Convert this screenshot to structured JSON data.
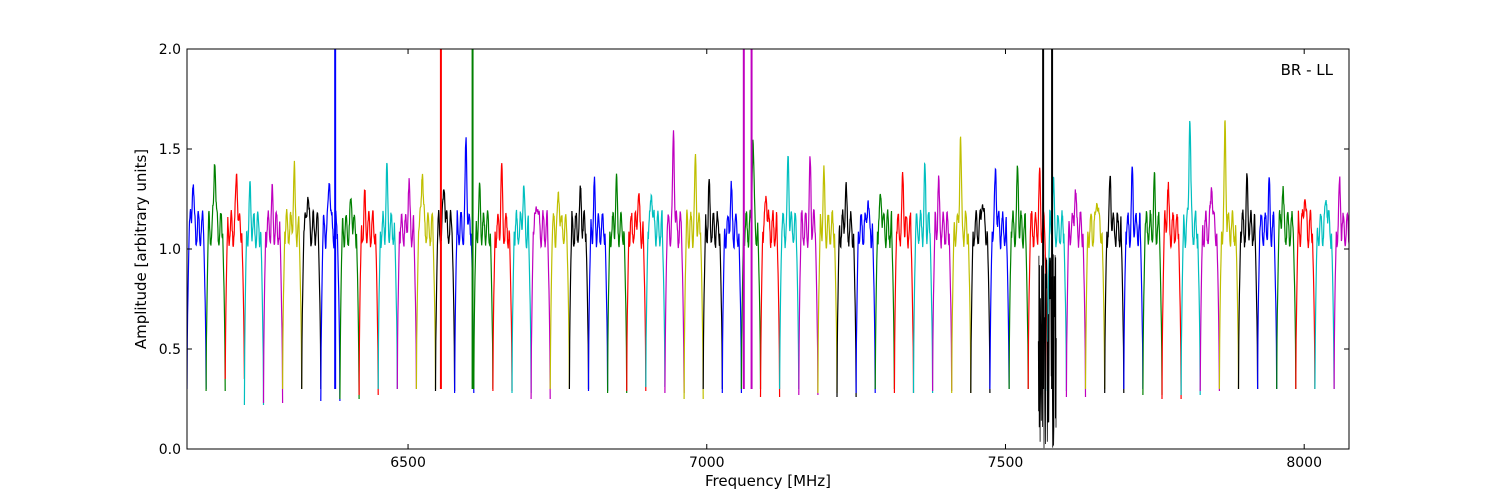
{
  "chart_data": {
    "type": "line",
    "annotation": "BR - LL",
    "xlabel": "Frequency [MHz]",
    "ylabel": "Amplitude [arbitrary units]",
    "xlim": [
      6130,
      8075
    ],
    "ylim": [
      0.0,
      2.0
    ],
    "xticks": [
      {
        "value": 6500,
        "label": "6500"
      },
      {
        "value": 7000,
        "label": "7000"
      },
      {
        "value": 7500,
        "label": "7500"
      },
      {
        "value": 8000,
        "label": "8000"
      }
    ],
    "yticks": [
      {
        "value": 0.0,
        "label": "0.0"
      },
      {
        "value": 0.5,
        "label": "0.5"
      },
      {
        "value": 1.0,
        "label": "1.0"
      },
      {
        "value": 1.5,
        "label": "1.5"
      },
      {
        "value": 2.0,
        "label": "2.0"
      }
    ],
    "grid": false,
    "colors": [
      "#0000ff",
      "#008000",
      "#ff0000",
      "#00bfbf",
      "#bf00bf",
      "#bfbf00",
      "#000000"
    ],
    "background_series_color": "#c0c0c0",
    "channel_width_mhz": 32,
    "channel_start_mhz": 6130,
    "channel_peaks": [
      1.36,
      1.52,
      1.41,
      1.28,
      1.25,
      1.38,
      1.31,
      1.4,
      1.26,
      1.22,
      1.37,
      1.31,
      1.45,
      1.35,
      1.55,
      1.27,
      1.38,
      1.32,
      1.29,
      1.3,
      1.28,
      1.27,
      1.32,
      1.29,
      1.33,
      1.6,
      1.43,
      1.28,
      1.3,
      1.58,
      1.31,
      1.45,
      1.4,
      1.34,
      1.31,
      1.27,
      1.3,
      1.34,
      1.36,
      1.3,
      1.58,
      1.29,
      1.4,
      1.37,
      1.33,
      1.32,
      1.31,
      1.3,
      1.34,
      1.35,
      1.3,
      1.3,
      1.71,
      1.37,
      1.62,
      1.3,
      1.3,
      1.3,
      1.3,
      1.3,
      1.3
    ],
    "channel_minima": [
      0.3,
      0.29,
      0.35,
      0.22,
      0.23,
      0.3,
      0.3,
      0.24,
      0.25,
      0.27,
      0.3,
      0.3,
      0.3,
      0.29,
      0.28,
      0.3,
      0.29,
      0.28,
      0.25,
      0.3,
      0.3,
      0.29,
      0.28,
      0.29,
      0.31,
      0.28,
      0.25,
      0.3,
      0.28,
      0.3,
      0.26,
      0.3,
      0.27,
      0.28,
      0.26,
      0.28,
      0.3,
      0.28,
      0.28,
      0.29,
      0.28,
      0.28,
      0.3,
      0.3,
      0.3,
      0.29,
      0.26,
      0.3,
      0.28,
      0.3,
      0.27,
      0.25,
      0.27,
      0.29,
      0.3,
      0.3,
      0.3,
      0.3,
      0.3,
      0.3,
      0.3
    ],
    "channel_baseline": 1.1,
    "spikes": [
      {
        "x": 6378,
        "y": 2.0,
        "color": "#0000ff"
      },
      {
        "x": 6555,
        "y": 2.0,
        "color": "#ff0000"
      },
      {
        "x": 6608,
        "y": 2.0,
        "color": "#008000"
      },
      {
        "x": 7062,
        "y": 2.0,
        "color": "#bf00bf"
      },
      {
        "x": 7075,
        "y": 2.0,
        "color": "#bf00bf"
      },
      {
        "x": 7563,
        "y": 2.0,
        "color": "#000000"
      },
      {
        "x": 7578,
        "y": 2.0,
        "color": "#000000"
      }
    ],
    "noisy_region": {
      "x_start": 7555,
      "x_end": 7585,
      "y_min": 0.0,
      "y_max": 1.0,
      "color": "#000000"
    }
  }
}
